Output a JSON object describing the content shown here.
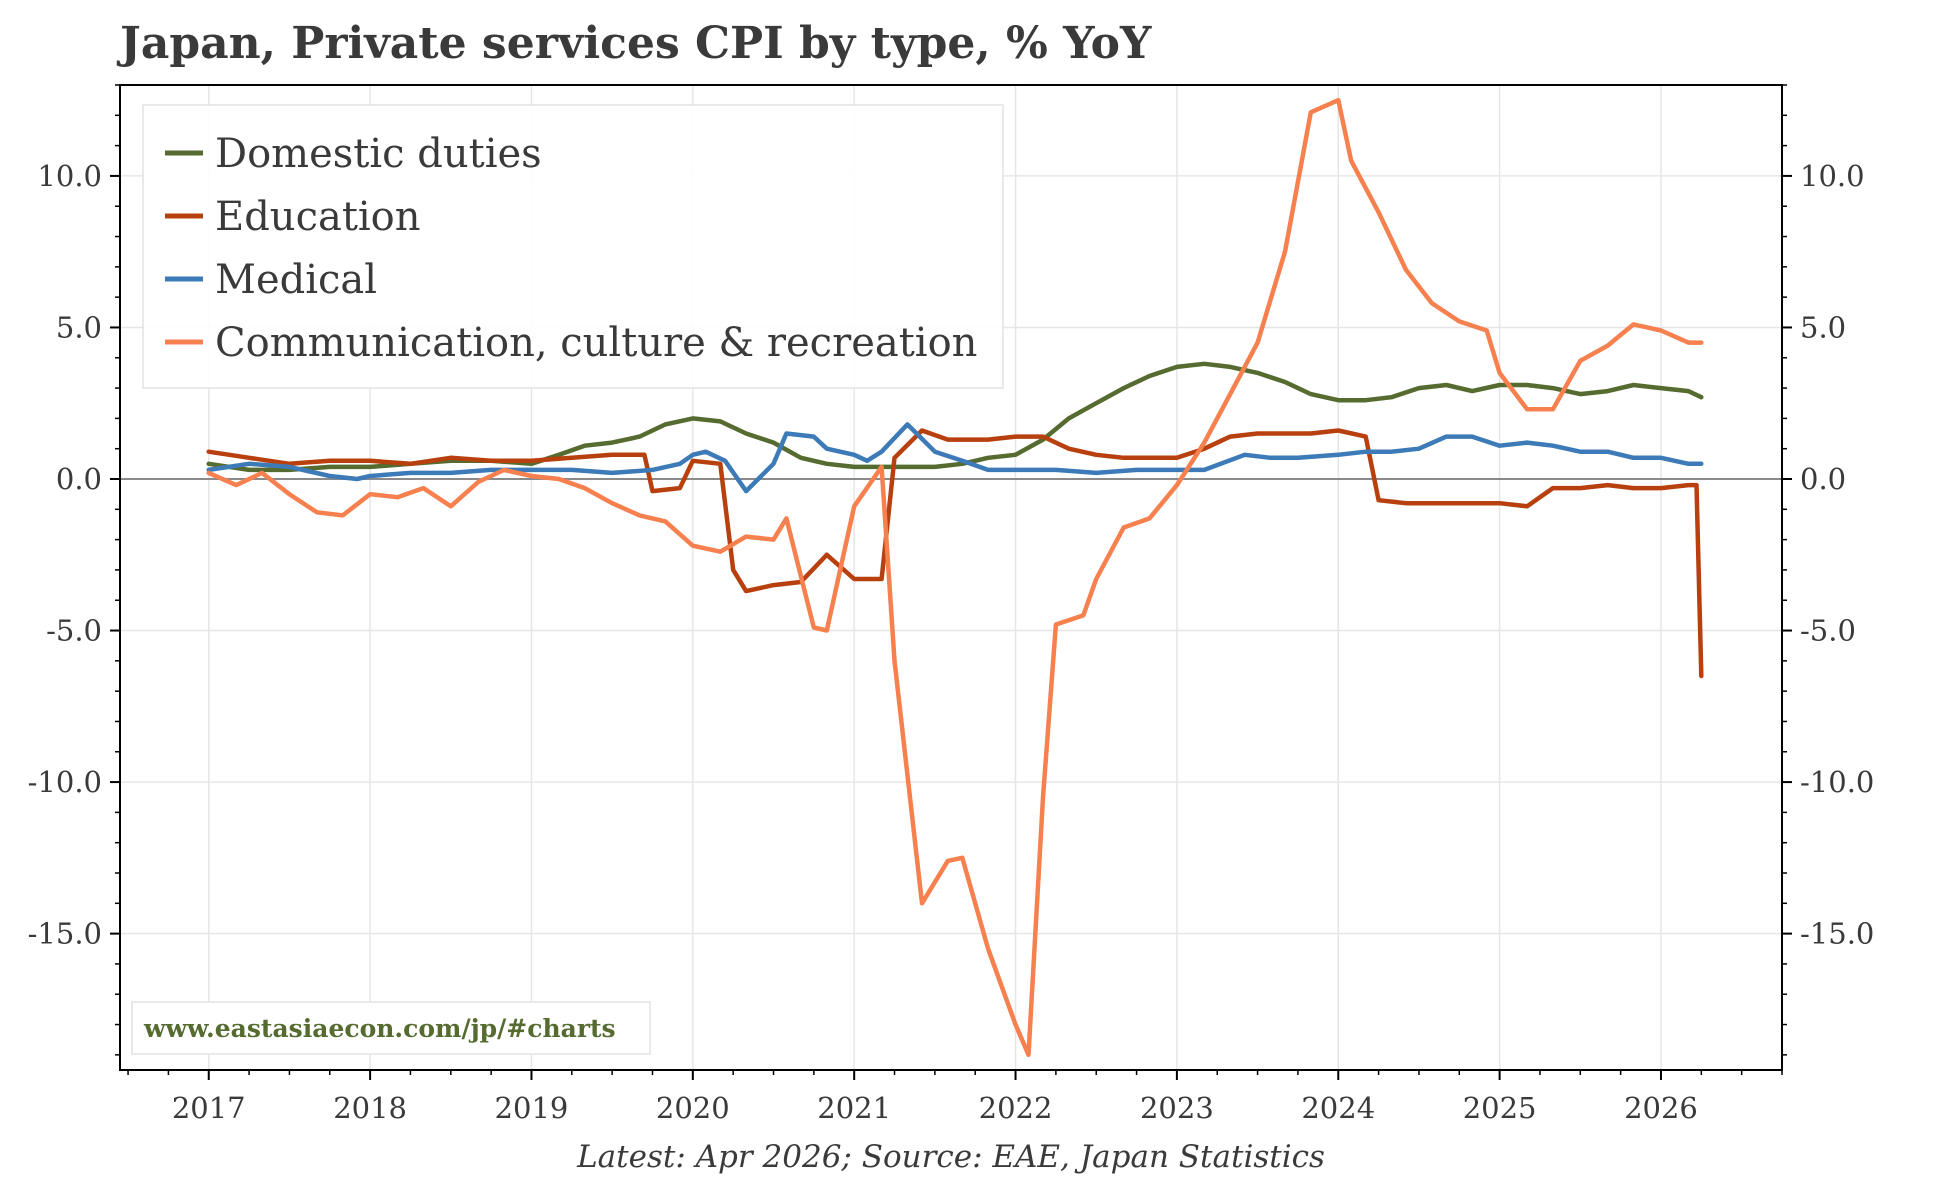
{
  "chart_data": {
    "type": "line",
    "title": "Japan, Private services CPI by type, % YoY",
    "source_note": "Latest: Apr 2026; Source: EAE, Japan Statistics",
    "watermark": "www.eastasiaecon.com/jp/#charts",
    "ylim": [
      -19.5,
      13.0
    ],
    "xlim": [
      2016.45,
      2026.75
    ],
    "y_ticks": [
      10.0,
      5.0,
      0.0,
      -5.0,
      -10.0,
      -15.0
    ],
    "y_tick_labels": [
      "10.0",
      "5.0",
      "0.0",
      "-5.0",
      "-10.0",
      "-15.0"
    ],
    "x_ticks": [
      2017,
      2018,
      2019,
      2020,
      2021,
      2022,
      2023,
      2024,
      2025,
      2026
    ],
    "x_tick_labels": [
      "2017",
      "2018",
      "2019",
      "2020",
      "2021",
      "2022",
      "2023",
      "2024",
      "2025",
      "2026"
    ],
    "grid": true,
    "zero_line": true,
    "legend_position": "top-left",
    "series": [
      {
        "name": "Domestic duties",
        "color": "#556b2f",
        "x": [
          2017.0,
          2017.25,
          2017.5,
          2017.75,
          2018.0,
          2018.25,
          2018.5,
          2018.75,
          2019.0,
          2019.17,
          2019.33,
          2019.5,
          2019.67,
          2019.83,
          2020.0,
          2020.17,
          2020.33,
          2020.5,
          2020.67,
          2020.83,
          2021.0,
          2021.17,
          2021.33,
          2021.5,
          2021.67,
          2021.83,
          2022.0,
          2022.17,
          2022.33,
          2022.5,
          2022.67,
          2022.83,
          2023.0,
          2023.17,
          2023.33,
          2023.5,
          2023.67,
          2023.83,
          2024.0,
          2024.17,
          2024.33,
          2024.5,
          2024.67,
          2024.83,
          2025.0,
          2025.17,
          2025.33,
          2025.5,
          2025.67,
          2025.83,
          2026.0,
          2026.17,
          2026.25
        ],
        "y": [
          0.5,
          0.3,
          0.3,
          0.4,
          0.4,
          0.5,
          0.6,
          0.6,
          0.5,
          0.8,
          1.1,
          1.2,
          1.4,
          1.8,
          2.0,
          1.9,
          1.5,
          1.2,
          0.7,
          0.5,
          0.4,
          0.4,
          0.4,
          0.4,
          0.5,
          0.7,
          0.8,
          1.3,
          2.0,
          2.5,
          3.0,
          3.4,
          3.7,
          3.8,
          3.7,
          3.5,
          3.2,
          2.8,
          2.6,
          2.6,
          2.7,
          3.0,
          3.1,
          2.9,
          3.1,
          3.1,
          3.0,
          2.8,
          2.9,
          3.1,
          3.0,
          2.9,
          2.7
        ]
      },
      {
        "name": "Education",
        "color": "#b8400e",
        "x": [
          2017.0,
          2017.25,
          2017.5,
          2017.75,
          2018.0,
          2018.25,
          2018.5,
          2018.75,
          2019.0,
          2019.25,
          2019.5,
          2019.7,
          2019.75,
          2019.92,
          2020.0,
          2020.17,
          2020.25,
          2020.33,
          2020.5,
          2020.67,
          2020.83,
          2021.0,
          2021.17,
          2021.25,
          2021.42,
          2021.58,
          2021.83,
          2022.0,
          2022.17,
          2022.33,
          2022.5,
          2022.67,
          2022.83,
          2023.0,
          2023.17,
          2023.33,
          2023.5,
          2023.67,
          2023.83,
          2024.0,
          2024.17,
          2024.25,
          2024.42,
          2024.67,
          2024.83,
          2025.0,
          2025.17,
          2025.33,
          2025.5,
          2025.67,
          2025.83,
          2026.0,
          2026.17,
          2026.22,
          2026.25
        ],
        "y": [
          0.9,
          0.7,
          0.5,
          0.6,
          0.6,
          0.5,
          0.7,
          0.6,
          0.6,
          0.7,
          0.8,
          0.8,
          -0.4,
          -0.3,
          0.6,
          0.5,
          -3.0,
          -3.7,
          -3.5,
          -3.4,
          -2.5,
          -3.3,
          -3.3,
          0.7,
          1.6,
          1.3,
          1.3,
          1.4,
          1.4,
          1.0,
          0.8,
          0.7,
          0.7,
          0.7,
          1.0,
          1.4,
          1.5,
          1.5,
          1.5,
          1.6,
          1.4,
          -0.7,
          -0.8,
          -0.8,
          -0.8,
          -0.8,
          -0.9,
          -0.3,
          -0.3,
          -0.2,
          -0.3,
          -0.3,
          -0.2,
          -0.2,
          -6.5
        ]
      },
      {
        "name": "Medical",
        "color": "#3d7ab8",
        "x": [
          2017.0,
          2017.25,
          2017.5,
          2017.75,
          2017.92,
          2018.0,
          2018.25,
          2018.5,
          2018.75,
          2019.0,
          2019.25,
          2019.5,
          2019.75,
          2019.92,
          2020.0,
          2020.08,
          2020.2,
          2020.33,
          2020.5,
          2020.58,
          2020.75,
          2020.83,
          2021.0,
          2021.08,
          2021.17,
          2021.33,
          2021.5,
          2021.67,
          2021.83,
          2022.0,
          2022.25,
          2022.5,
          2022.75,
          2023.0,
          2023.17,
          2023.42,
          2023.58,
          2023.75,
          2024.0,
          2024.17,
          2024.33,
          2024.5,
          2024.67,
          2024.83,
          2025.0,
          2025.17,
          2025.33,
          2025.5,
          2025.67,
          2025.83,
          2026.0,
          2026.17,
          2026.25
        ],
        "y": [
          0.3,
          0.5,
          0.4,
          0.1,
          0.0,
          0.1,
          0.2,
          0.2,
          0.3,
          0.3,
          0.3,
          0.2,
          0.3,
          0.5,
          0.8,
          0.9,
          0.6,
          -0.4,
          0.5,
          1.5,
          1.4,
          1.0,
          0.8,
          0.6,
          0.9,
          1.8,
          0.9,
          0.6,
          0.3,
          0.3,
          0.3,
          0.2,
          0.3,
          0.3,
          0.3,
          0.8,
          0.7,
          0.7,
          0.8,
          0.9,
          0.9,
          1.0,
          1.4,
          1.4,
          1.1,
          1.2,
          1.1,
          0.9,
          0.9,
          0.7,
          0.7,
          0.5,
          0.5
        ]
      },
      {
        "name": "Communication, culture & recreation",
        "color": "#f7804f",
        "x": [
          2017.0,
          2017.17,
          2017.33,
          2017.5,
          2017.67,
          2017.83,
          2018.0,
          2018.17,
          2018.33,
          2018.5,
          2018.67,
          2018.83,
          2019.0,
          2019.17,
          2019.33,
          2019.5,
          2019.67,
          2019.83,
          2020.0,
          2020.17,
          2020.33,
          2020.5,
          2020.58,
          2020.75,
          2020.83,
          2021.0,
          2021.17,
          2021.25,
          2021.42,
          2021.58,
          2021.67,
          2021.83,
          2022.0,
          2022.08,
          2022.17,
          2022.25,
          2022.42,
          2022.5,
          2022.67,
          2022.83,
          2023.0,
          2023.17,
          2023.33,
          2023.5,
          2023.67,
          2023.83,
          2024.0,
          2024.08,
          2024.25,
          2024.42,
          2024.58,
          2024.75,
          2024.92,
          2025.0,
          2025.17,
          2025.33,
          2025.5,
          2025.67,
          2025.83,
          2026.0,
          2026.17,
          2026.25
        ],
        "y": [
          0.2,
          -0.2,
          0.2,
          -0.5,
          -1.1,
          -1.2,
          -0.5,
          -0.6,
          -0.3,
          -0.9,
          -0.1,
          0.3,
          0.1,
          0.0,
          -0.3,
          -0.8,
          -1.2,
          -1.4,
          -2.2,
          -2.4,
          -1.9,
          -2.0,
          -1.3,
          -4.9,
          -5.0,
          -0.9,
          0.4,
          -6.0,
          -14.0,
          -12.6,
          -12.5,
          -15.5,
          -18.0,
          -19.0,
          -10.5,
          -4.8,
          -4.5,
          -3.3,
          -1.6,
          -1.3,
          -0.2,
          1.2,
          2.8,
          4.5,
          7.5,
          12.1,
          12.5,
          10.5,
          8.8,
          6.9,
          5.8,
          5.2,
          4.9,
          3.5,
          2.3,
          2.3,
          3.9,
          4.4,
          5.1,
          4.9,
          4.5,
          4.5
        ]
      }
    ]
  }
}
